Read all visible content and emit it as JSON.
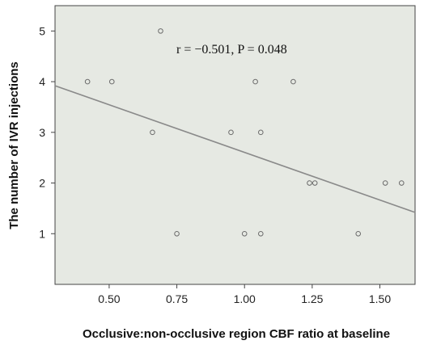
{
  "chart_data": {
    "type": "scatter",
    "title": "",
    "xlabel": "Occlusive:non-occlusive region CBF ratio at baseline",
    "ylabel": "The number of IVR injections",
    "xlim": [
      0.3,
      1.63
    ],
    "ylim": [
      0.0,
      5.5
    ],
    "x_ticks": [
      0.5,
      0.75,
      1.0,
      1.25,
      1.5
    ],
    "x_tick_labels": [
      "0.50",
      "0.75",
      "1.00",
      "1.25",
      "1.50"
    ],
    "y_ticks": [
      1,
      2,
      3,
      4,
      5
    ],
    "y_tick_labels": [
      "1",
      "2",
      "3",
      "4",
      "5"
    ],
    "grid": false,
    "annotation": "r =  −0.501, P = 0.048",
    "points": [
      {
        "x": 0.42,
        "y": 4
      },
      {
        "x": 0.51,
        "y": 4
      },
      {
        "x": 0.66,
        "y": 3
      },
      {
        "x": 0.69,
        "y": 5
      },
      {
        "x": 0.75,
        "y": 1
      },
      {
        "x": 0.95,
        "y": 3
      },
      {
        "x": 1.0,
        "y": 1
      },
      {
        "x": 1.04,
        "y": 4
      },
      {
        "x": 1.06,
        "y": 3
      },
      {
        "x": 1.06,
        "y": 1
      },
      {
        "x": 1.18,
        "y": 4
      },
      {
        "x": 1.24,
        "y": 2
      },
      {
        "x": 1.26,
        "y": 2
      },
      {
        "x": 1.42,
        "y": 1
      },
      {
        "x": 1.52,
        "y": 2
      },
      {
        "x": 1.58,
        "y": 2
      }
    ],
    "fit_line": {
      "x": [
        0.3,
        1.63
      ],
      "y": [
        3.92,
        1.42
      ]
    },
    "colors": {
      "plot_background": "#e6e9e3",
      "point_stroke": "#6b6b6b",
      "fit_line": "#8a8a8a",
      "axis": "#444444"
    }
  }
}
